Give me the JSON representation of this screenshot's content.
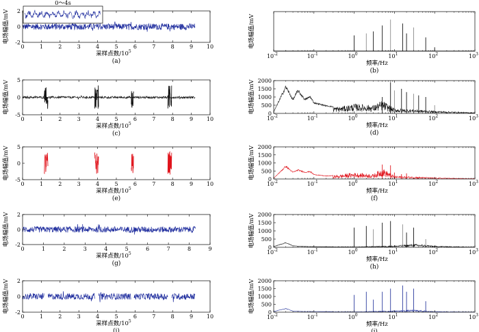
{
  "colors": {
    "blue": "#1f2d9e",
    "black": "#111111",
    "red": "#e0141c",
    "gray": "#8a8a8a",
    "navy": "#2b3a9e"
  },
  "time_axis_label": "采样点数/10",
  "time_axis_exponent": "5",
  "freq_axis_label": "频率/Hz",
  "amp_axis_label": "电场幅值/mV",
  "inset_label": "0～4s",
  "chart_data": [
    {
      "id": "a",
      "type": "line",
      "caption": "(a)",
      "color": "blue",
      "xlim": [
        0,
        10
      ],
      "ylim": [
        -2,
        2
      ],
      "xticks": [
        "0",
        "1",
        "2",
        "3",
        "4",
        "5",
        "6",
        "7",
        "8",
        "9",
        "10"
      ],
      "yticks": [
        "-2",
        "0",
        "2"
      ],
      "signal": {
        "x_end": 9.2,
        "amplitude": 0.4
      }
    },
    {
      "id": "b",
      "type": "line",
      "caption": "(b)",
      "color": "black",
      "xscale": "log",
      "xlim": [
        0.01,
        1000
      ],
      "ylim": [
        0,
        2000
      ],
      "xticks": [
        "10",
        "10",
        "10",
        "10",
        "10",
        "10"
      ],
      "xtick_exponents": [
        "-2",
        "-1",
        "0",
        "1",
        "2",
        "3"
      ],
      "yticks": [],
      "peaks": [
        [
          0.02,
          40
        ],
        [
          1,
          800
        ],
        [
          2,
          900
        ],
        [
          3,
          1000
        ],
        [
          5,
          1300
        ],
        [
          8,
          1600
        ],
        [
          16,
          1400
        ],
        [
          20,
          900
        ],
        [
          30,
          1200
        ],
        [
          60,
          700
        ],
        [
          100,
          200
        ]
      ]
    },
    {
      "id": "c",
      "type": "line",
      "caption": "(c)",
      "color": "black",
      "xlim": [
        0,
        10
      ],
      "ylim": [
        -5,
        5
      ],
      "xticks": [
        "0",
        "1",
        "2",
        "3",
        "4",
        "5",
        "6",
        "7",
        "8",
        "9",
        "10"
      ],
      "yticks": [
        "-5",
        "0",
        "5"
      ],
      "signal": {
        "x_end": 9.2,
        "amplitude": 0.3
      },
      "bursts": [
        [
          1.15,
          1.35,
          3.5
        ],
        [
          3.85,
          4.05,
          3.5
        ],
        [
          5.8,
          5.92,
          3.0
        ],
        [
          7.75,
          7.95,
          3.5
        ]
      ]
    },
    {
      "id": "d",
      "type": "line",
      "caption": "(d)",
      "color": "black",
      "xscale": "log",
      "xlim": [
        0.01,
        1000
      ],
      "ylim": [
        0,
        2000
      ],
      "xticks": [
        "10",
        "10",
        "10",
        "10",
        "10",
        "10"
      ],
      "xtick_exponents": [
        "-2",
        "-1",
        "0",
        "1",
        "2",
        "3"
      ],
      "yticks": [
        "0",
        "500",
        "1000",
        "1500",
        "2000"
      ],
      "envelope": [
        [
          0.01,
          100
        ],
        [
          0.02,
          1750
        ],
        [
          0.03,
          900
        ],
        [
          0.04,
          1500
        ],
        [
          0.06,
          900
        ],
        [
          0.08,
          1100
        ],
        [
          0.1,
          700
        ],
        [
          0.2,
          500
        ],
        [
          0.4,
          400
        ],
        [
          0.7,
          500
        ],
        [
          1,
          600
        ],
        [
          3,
          500
        ],
        [
          5,
          800
        ],
        [
          10,
          300
        ],
        [
          30,
          250
        ],
        [
          100,
          150
        ],
        [
          1000,
          50
        ]
      ],
      "peaks": [
        [
          5,
          1000
        ],
        [
          8,
          1900
        ],
        [
          10,
          1400
        ],
        [
          15,
          1500
        ],
        [
          20,
          1300
        ],
        [
          30,
          1200
        ],
        [
          40,
          1100
        ],
        [
          60,
          1000
        ],
        [
          100,
          500
        ]
      ]
    },
    {
      "id": "e",
      "type": "line",
      "caption": "(e)",
      "color": "red",
      "xlim": [
        0,
        10
      ],
      "ylim": [
        -5,
        5
      ],
      "xticks": [
        "0",
        "1",
        "2",
        "3",
        "4",
        "5",
        "6",
        "7",
        "8",
        "9",
        "10"
      ],
      "yticks": [
        "-5",
        "0",
        "5"
      ],
      "bursts": [
        [
          1.15,
          1.35,
          3.5
        ],
        [
          3.85,
          4.05,
          3.5
        ],
        [
          5.8,
          5.92,
          3.0
        ],
        [
          7.75,
          7.95,
          3.5
        ]
      ]
    },
    {
      "id": "f",
      "type": "line",
      "caption": "(f)",
      "color": "red",
      "xscale": "log",
      "xlim": [
        0.01,
        1000
      ],
      "ylim": [
        0,
        2000
      ],
      "xticks": [
        "10",
        "10",
        "10",
        "10",
        "10",
        "10"
      ],
      "xtick_exponents": [
        "-2",
        "-1",
        "0",
        "1",
        "2",
        "3"
      ],
      "yticks": [
        "0",
        "500",
        "1000",
        "1500",
        "2000"
      ],
      "envelope": [
        [
          0.01,
          50
        ],
        [
          0.02,
          850
        ],
        [
          0.03,
          450
        ],
        [
          0.04,
          600
        ],
        [
          0.06,
          450
        ],
        [
          0.08,
          500
        ],
        [
          0.1,
          300
        ],
        [
          0.2,
          200
        ],
        [
          0.4,
          250
        ],
        [
          0.7,
          350
        ],
        [
          1,
          400
        ],
        [
          3,
          300
        ],
        [
          5,
          700
        ],
        [
          10,
          200
        ],
        [
          30,
          150
        ],
        [
          100,
          80
        ],
        [
          1000,
          20
        ]
      ],
      "peaks": [
        [
          5,
          900
        ],
        [
          8,
          850
        ],
        [
          10,
          400
        ],
        [
          15,
          300
        ],
        [
          20,
          350
        ]
      ]
    },
    {
      "id": "g",
      "type": "line",
      "caption": "(g)",
      "color": "blue",
      "xlim": [
        0,
        9
      ],
      "ylim": [
        -2,
        2
      ],
      "xticks": [
        "0",
        "1",
        "2",
        "3",
        "4",
        "5",
        "6",
        "7",
        "8",
        "9"
      ],
      "yticks": [
        "-2",
        "0",
        "2"
      ],
      "signal": {
        "x_end": 8.3,
        "amplitude": 0.4
      }
    },
    {
      "id": "h",
      "type": "line",
      "caption": "(h)",
      "color": "black",
      "xscale": "log",
      "xlim": [
        0.01,
        1000
      ],
      "ylim": [
        0,
        2000
      ],
      "xticks": [
        "10",
        "10",
        "10",
        "10",
        "10",
        "10"
      ],
      "xtick_exponents": [
        "-2",
        "-1",
        "0",
        "1",
        "2",
        "3"
      ],
      "yticks": [
        "0",
        "500",
        "1000",
        "1500",
        "2000"
      ],
      "envelope": [
        [
          0.01,
          50
        ],
        [
          0.02,
          300
        ],
        [
          0.03,
          100
        ],
        [
          0.05,
          60
        ],
        [
          0.1,
          40
        ],
        [
          1,
          30
        ],
        [
          10,
          100
        ],
        [
          30,
          200
        ],
        [
          60,
          150
        ],
        [
          100,
          80
        ],
        [
          1000,
          20
        ]
      ],
      "peaks": [
        [
          1,
          1200
        ],
        [
          2,
          1300
        ],
        [
          3,
          1100
        ],
        [
          5,
          1500
        ],
        [
          8,
          1600
        ],
        [
          16,
          1400
        ],
        [
          20,
          900
        ],
        [
          30,
          1200
        ],
        [
          60,
          500
        ]
      ]
    },
    {
      "id": "i",
      "type": "line",
      "caption": "(i)",
      "color": "blue",
      "xlim": [
        0,
        10
      ],
      "ylim": [
        -2,
        2
      ],
      "xticks": [
        "0",
        "1",
        "2",
        "3",
        "4",
        "5",
        "6",
        "7",
        "8",
        "9",
        "10"
      ],
      "yticks": [
        "-2",
        "0",
        "2"
      ],
      "signal": {
        "x_end": 9.2,
        "amplitude": 0.4
      },
      "gaps": [
        [
          1.15,
          1.35
        ],
        [
          3.85,
          4.05
        ],
        [
          5.8,
          5.92
        ],
        [
          7.75,
          7.95
        ]
      ]
    },
    {
      "id": "j",
      "type": "line",
      "caption": "(j)",
      "color": "navy",
      "xscale": "log",
      "xlim": [
        0.01,
        1000
      ],
      "ylim": [
        0,
        2000
      ],
      "xticks": [
        "10",
        "10",
        "10",
        "10",
        "10",
        "10"
      ],
      "xtick_exponents": [
        "-2",
        "-1",
        "0",
        "1",
        "2",
        "3"
      ],
      "yticks": [
        "0",
        "500",
        "1000",
        "1500",
        "2000"
      ],
      "envelope": [
        [
          0.01,
          50
        ],
        [
          0.02,
          250
        ],
        [
          0.03,
          80
        ],
        [
          0.05,
          50
        ],
        [
          1,
          30
        ],
        [
          10,
          100
        ],
        [
          30,
          150
        ],
        [
          100,
          50
        ],
        [
          1000,
          10
        ]
      ],
      "peaks": [
        [
          1,
          1100
        ],
        [
          2,
          1300
        ],
        [
          3,
          800
        ],
        [
          5,
          1300
        ],
        [
          8,
          1500
        ],
        [
          16,
          1700
        ],
        [
          20,
          1300
        ],
        [
          30,
          1500
        ],
        [
          60,
          700
        ]
      ]
    }
  ]
}
